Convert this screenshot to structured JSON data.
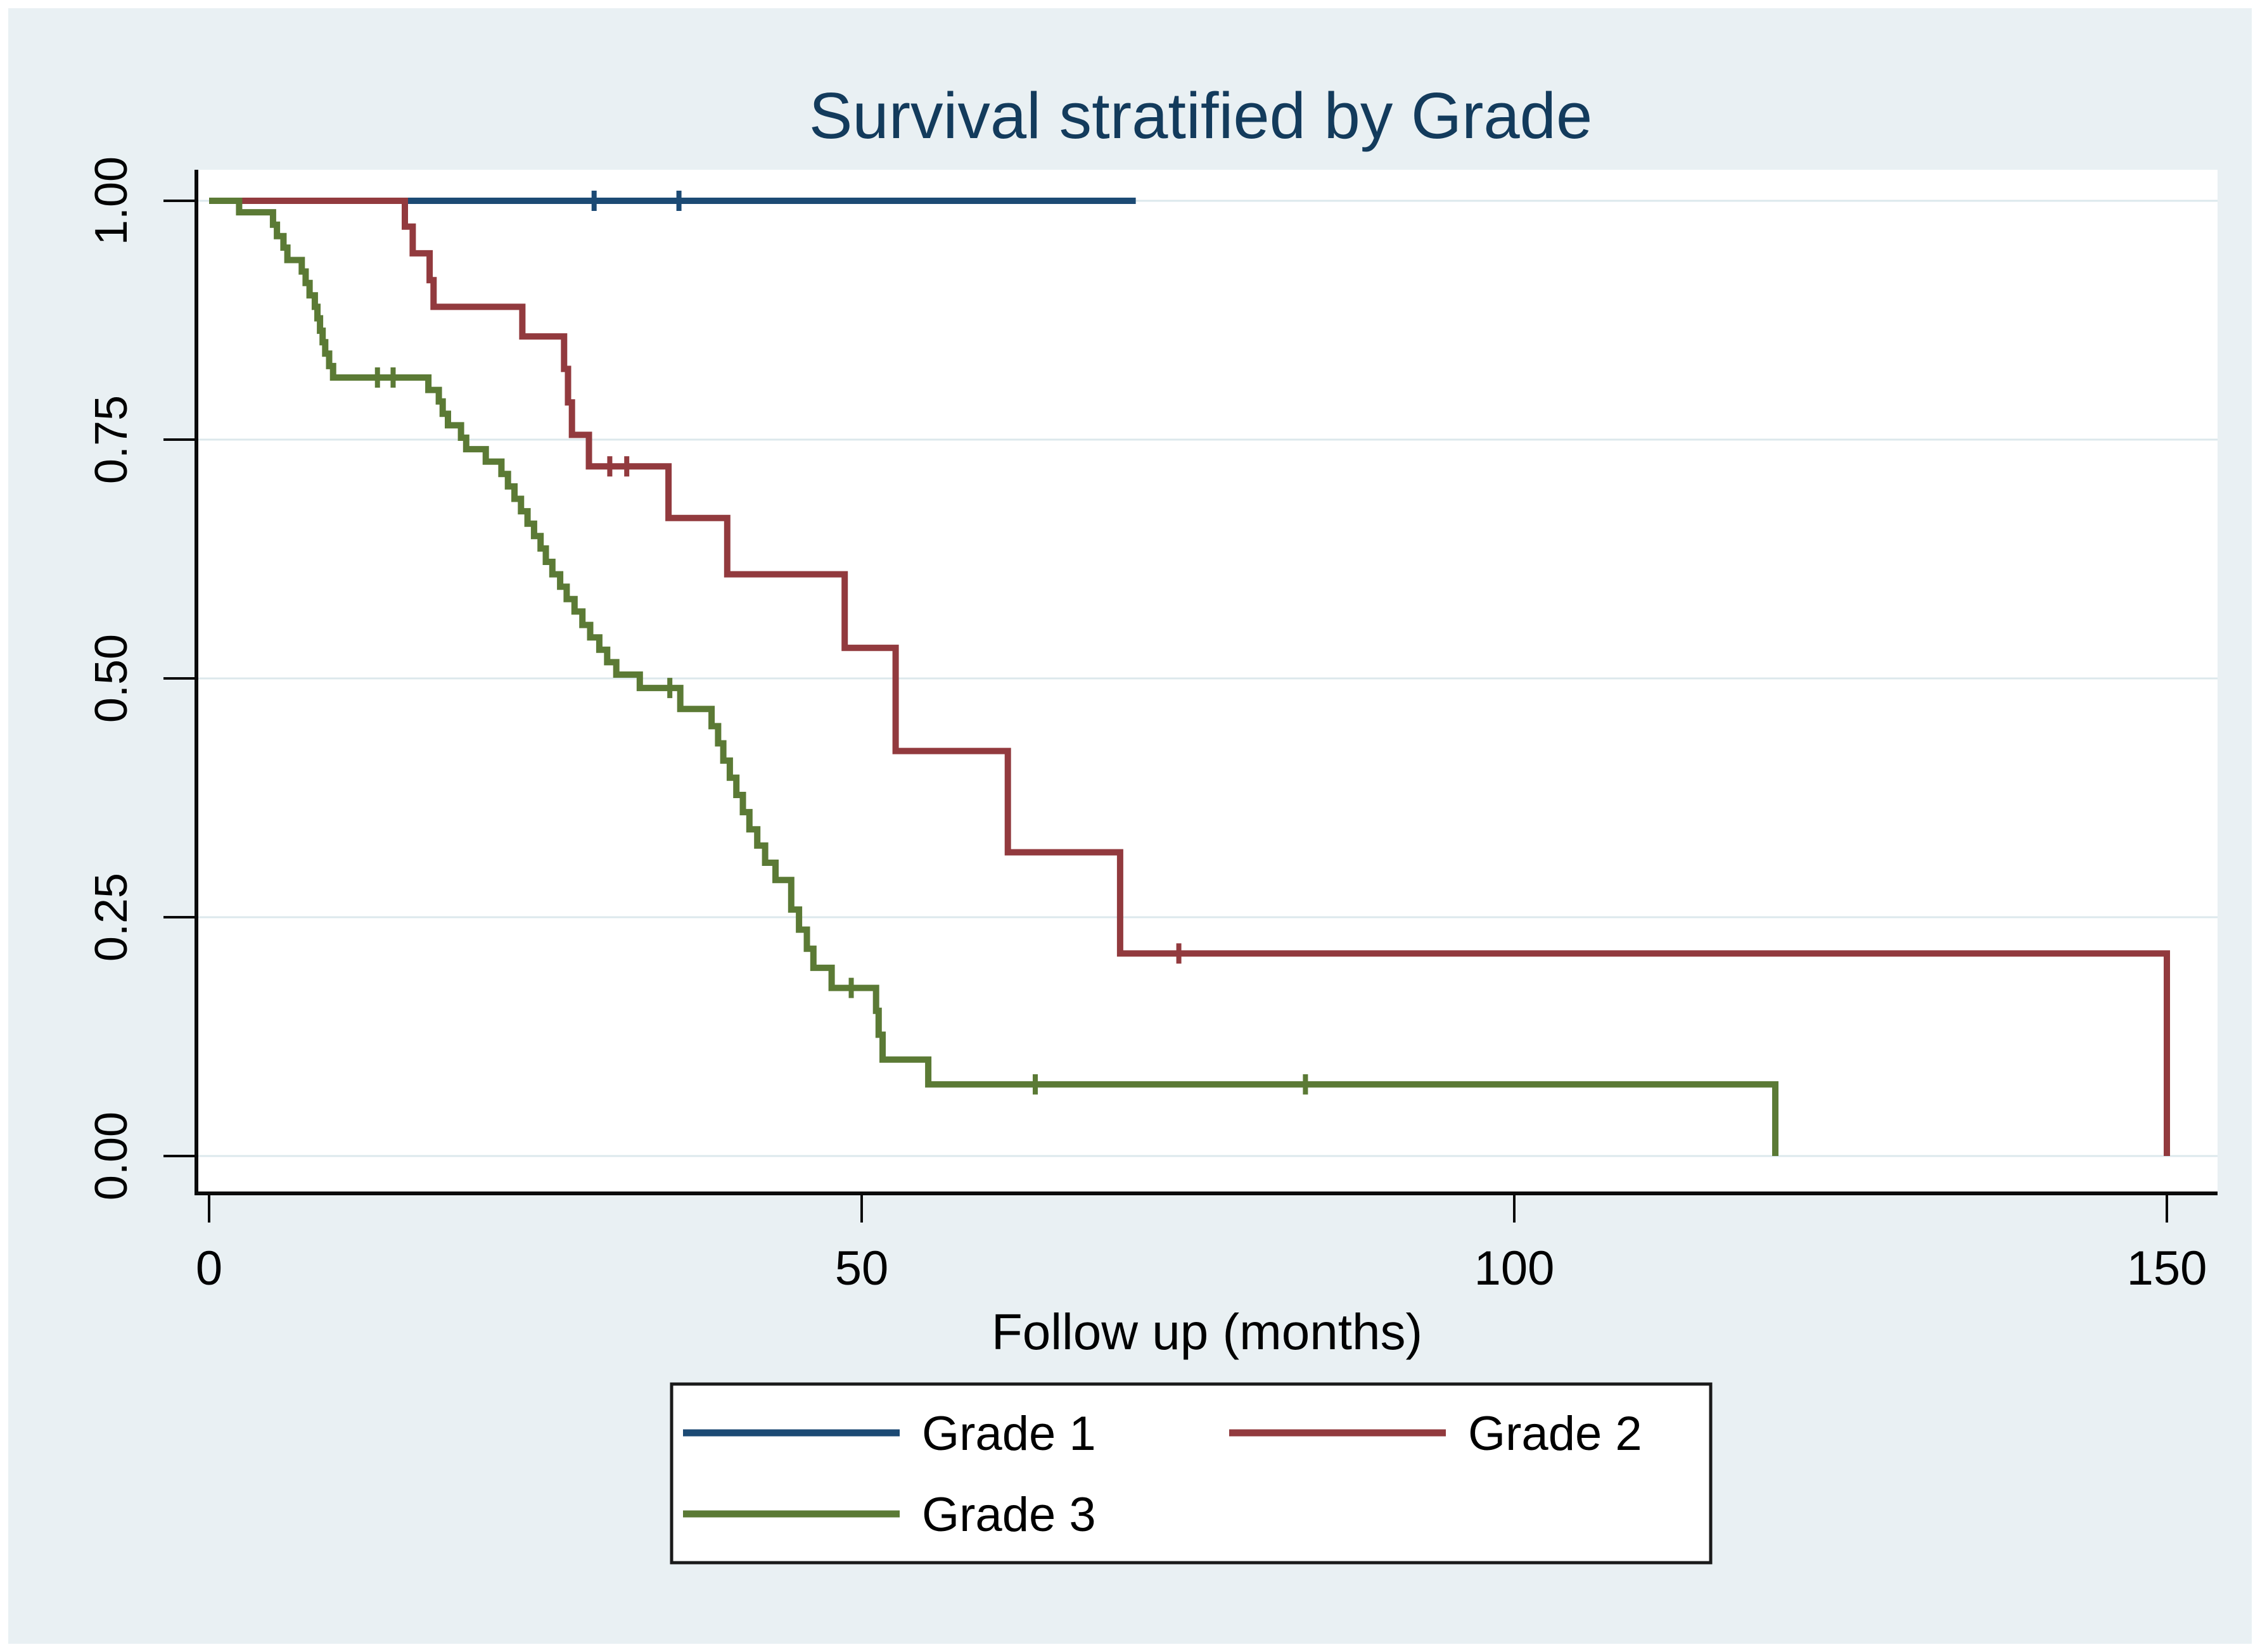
{
  "page": {
    "margin_color": "#ffffff",
    "graph_background": "#e9f0f3",
    "plot_background": "#ffffff",
    "gridline_color": "#dce8ec",
    "axis_color": "#0a0a0a",
    "title_color": "#133b5c",
    "text_color": "#000000",
    "legend_border_color": "#1a1a1a",
    "legend_background": "#ffffff"
  },
  "chart_data": {
    "type": "line",
    "subtype": "kaplan-meier-step",
    "title": "Survival stratified by Grade",
    "xlabel": "Follow up (months)",
    "ylabel": "",
    "xlim": [
      0,
      150
    ],
    "ylim": [
      0.0,
      1.0
    ],
    "x_ticks": [
      0,
      50,
      100,
      150
    ],
    "y_ticks": [
      {
        "value": 0.0,
        "label": "0.00"
      },
      {
        "value": 0.25,
        "label": "0.25"
      },
      {
        "value": 0.5,
        "label": "0.50"
      },
      {
        "value": 0.75,
        "label": "0.75"
      },
      {
        "value": 1.0,
        "label": "1.00"
      }
    ],
    "grid": true,
    "legend_position": "bottom-center",
    "series": [
      {
        "name": "Grade 1",
        "color": "#1c4a74",
        "points": [
          [
            0,
            1.0
          ],
          [
            71,
            1.0
          ]
        ],
        "censor_ticks": [
          29.5,
          36
        ]
      },
      {
        "name": "Grade 2",
        "color": "#923a3e",
        "points": [
          [
            0,
            1.0
          ],
          [
            15,
            0.973
          ],
          [
            15.6,
            0.945
          ],
          [
            16.9,
            0.917
          ],
          [
            17.2,
            0.889
          ],
          [
            24,
            0.858
          ],
          [
            27.2,
            0.824
          ],
          [
            27.5,
            0.789
          ],
          [
            27.8,
            0.755
          ],
          [
            29.1,
            0.722
          ],
          [
            35.2,
            0.668
          ],
          [
            39.7,
            0.609
          ],
          [
            48.7,
            0.532
          ],
          [
            52.6,
            0.424
          ],
          [
            61.2,
            0.318
          ],
          [
            69.8,
            0.212
          ],
          [
            150,
            0.0
          ]
        ],
        "censor_ticks": [
          30.7,
          32,
          74.3
        ]
      },
      {
        "name": "Grade 3",
        "color": "#5b7a35",
        "points": [
          [
            0,
            1.0
          ],
          [
            2.3,
            0.988
          ],
          [
            4.9,
            0.975
          ],
          [
            5.2,
            0.963
          ],
          [
            5.7,
            0.951
          ],
          [
            6,
            0.938
          ],
          [
            7.1,
            0.926
          ],
          [
            7.4,
            0.914
          ],
          [
            7.7,
            0.901
          ],
          [
            8.1,
            0.889
          ],
          [
            8.3,
            0.877
          ],
          [
            8.5,
            0.864
          ],
          [
            8.7,
            0.852
          ],
          [
            8.9,
            0.84
          ],
          [
            9.2,
            0.827
          ],
          [
            9.5,
            0.815
          ],
          [
            16.8,
            0.802
          ],
          [
            17.6,
            0.79
          ],
          [
            17.9,
            0.777
          ],
          [
            18.3,
            0.765
          ],
          [
            19.3,
            0.752
          ],
          [
            19.7,
            0.74
          ],
          [
            21.2,
            0.727
          ],
          [
            22.4,
            0.714
          ],
          [
            22.9,
            0.701
          ],
          [
            23.4,
            0.688
          ],
          [
            23.9,
            0.675
          ],
          [
            24.4,
            0.662
          ],
          [
            24.9,
            0.649
          ],
          [
            25.4,
            0.636
          ],
          [
            25.8,
            0.622
          ],
          [
            26.3,
            0.609
          ],
          [
            26.9,
            0.596
          ],
          [
            27.4,
            0.583
          ],
          [
            28,
            0.57
          ],
          [
            28.6,
            0.556
          ],
          [
            29.2,
            0.543
          ],
          [
            29.9,
            0.53
          ],
          [
            30.5,
            0.517
          ],
          [
            31.2,
            0.504
          ],
          [
            33,
            0.49
          ],
          [
            36.1,
            0.468
          ],
          [
            38.5,
            0.45
          ],
          [
            39,
            0.432
          ],
          [
            39.4,
            0.414
          ],
          [
            39.9,
            0.396
          ],
          [
            40.4,
            0.378
          ],
          [
            40.9,
            0.36
          ],
          [
            41.4,
            0.342
          ],
          [
            42,
            0.325
          ],
          [
            42.6,
            0.307
          ],
          [
            43.4,
            0.289
          ],
          [
            44.6,
            0.258
          ],
          [
            45.2,
            0.237
          ],
          [
            45.8,
            0.217
          ],
          [
            46.3,
            0.197
          ],
          [
            47.7,
            0.176
          ],
          [
            51.1,
            0.152
          ],
          [
            51.3,
            0.127
          ],
          [
            51.6,
            0.101
          ],
          [
            55.1,
            0.075
          ],
          [
            120,
            0.0
          ]
        ],
        "censor_ticks": [
          12.9,
          14.1,
          35.3,
          49.2,
          63.3,
          84
        ]
      }
    ]
  }
}
